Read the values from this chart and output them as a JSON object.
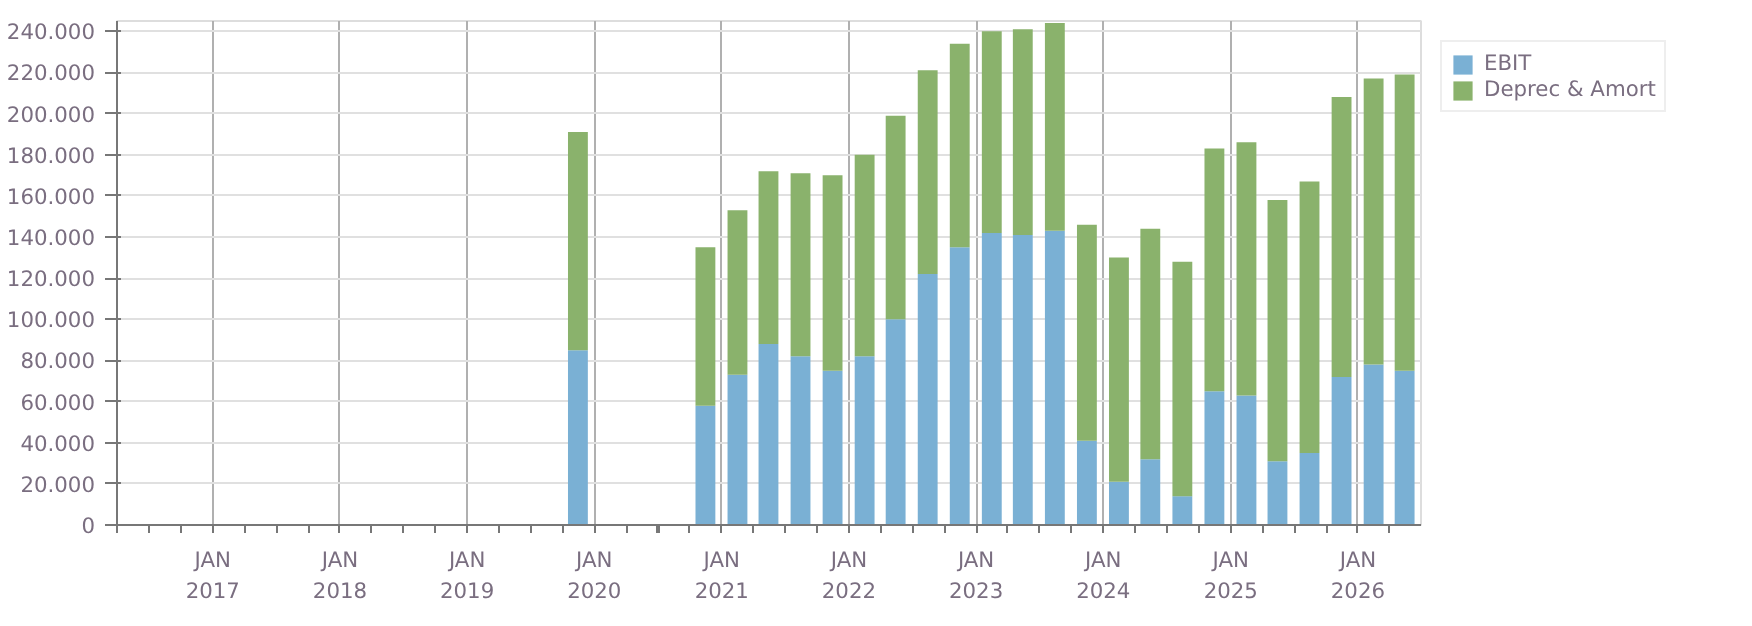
{
  "chart_data": {
    "type": "bar",
    "stacked": true,
    "x": [
      "2019-11-15",
      "2020-11-15",
      "2021-02-15",
      "2021-05-15",
      "2021-08-15",
      "2021-11-15",
      "2022-02-15",
      "2022-05-15",
      "2022-08-15",
      "2022-11-15",
      "2023-02-15",
      "2023-05-15",
      "2023-08-15",
      "2023-11-15",
      "2024-02-15",
      "2024-05-15",
      "2024-08-15",
      "2024-11-15",
      "2025-02-15",
      "2025-05-15",
      "2025-08-15",
      "2025-11-15",
      "2026-02-15",
      "2026-05-15"
    ],
    "series": [
      {
        "name": "EBIT",
        "color": "#7ab0d4",
        "values": [
          85000,
          58000,
          73000,
          88000,
          82000,
          75000,
          82000,
          100000,
          122000,
          135000,
          142000,
          141000,
          143000,
          41000,
          21000,
          32000,
          14000,
          65000,
          63000,
          31000,
          35000,
          72000,
          78000,
          75000
        ]
      },
      {
        "name": "Deprec & Amort",
        "color": "#8ab26c",
        "values": [
          106000,
          77000,
          80000,
          84000,
          89000,
          95000,
          98000,
          99000,
          99000,
          99000,
          98000,
          100000,
          101000,
          105000,
          109000,
          112000,
          114000,
          118000,
          123000,
          127000,
          132000,
          136000,
          139000,
          144000
        ]
      }
    ],
    "xlim": [
      "2016-04-01",
      "2026-07-01"
    ],
    "xticks": [
      {
        "value": "2017-01-01",
        "label": "JAN\n2017"
      },
      {
        "value": "2018-01-01",
        "label": "JAN\n2018"
      },
      {
        "value": "2019-01-01",
        "label": "JAN\n2019"
      },
      {
        "value": "2020-01-01",
        "label": "JAN\n2020"
      },
      {
        "value": "2021-01-01",
        "label": "JAN\n2021"
      },
      {
        "value": "2022-01-01",
        "label": "JAN\n2022"
      },
      {
        "value": "2023-01-01",
        "label": "JAN\n2023"
      },
      {
        "value": "2024-01-01",
        "label": "JAN\n2024"
      },
      {
        "value": "2025-01-01",
        "label": "JAN\n2025"
      },
      {
        "value": "2026-01-01",
        "label": "JAN\n2026"
      }
    ],
    "ylim": [
      0,
      245000
    ],
    "yticks": [
      0,
      {
        "value": 20000,
        "label": "20.000"
      },
      {
        "value": 40000,
        "label": "40.000"
      },
      {
        "value": 60000,
        "label": "60.000"
      },
      {
        "value": 80000,
        "label": "80.000"
      },
      {
        "value": 100000,
        "label": "100.000"
      },
      {
        "value": 120000,
        "label": "120.000"
      },
      {
        "value": 140000,
        "label": "140.000"
      },
      {
        "value": 160000,
        "label": "160.000"
      },
      {
        "value": 180000,
        "label": "180.000"
      },
      {
        "value": 200000,
        "label": "200.000"
      },
      {
        "value": 220000,
        "label": "220.000"
      },
      {
        "value": 240000,
        "label": "240.000"
      }
    ],
    "grid": true,
    "legend": "top right"
  }
}
